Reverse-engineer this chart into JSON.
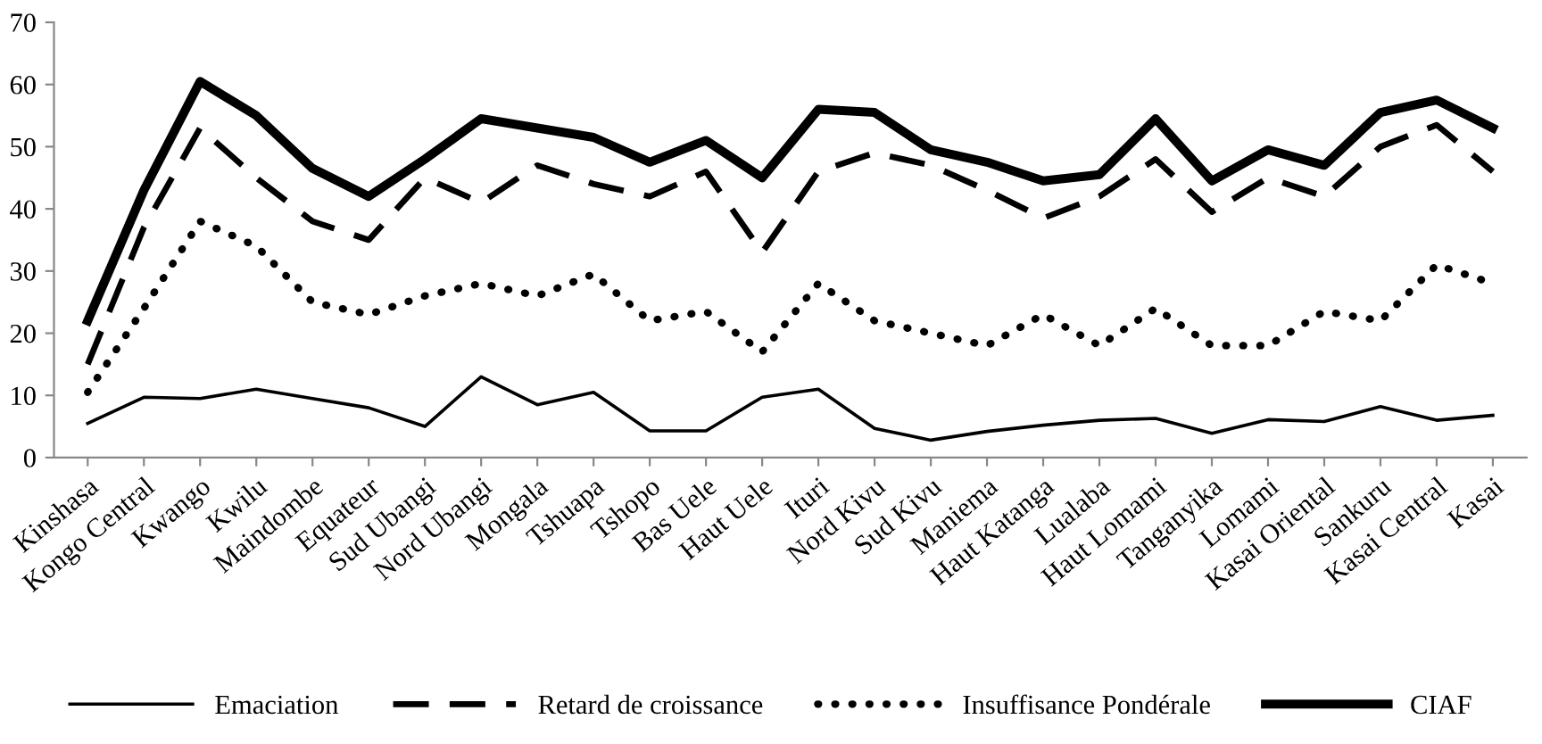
{
  "chart_data": {
    "type": "line",
    "categories": [
      "Kinshasa",
      "Kongo Central",
      "Kwango",
      "Kwilu",
      "Maindombe",
      "Equateur",
      "Sud Ubangi",
      "Nord Ubangi",
      "Mongala",
      "Tshuapa",
      "Tshopo",
      "Bas Uele",
      "Haut Uele",
      "Ituri",
      "Nord Kivu",
      "Sud Kivu",
      "Maniema",
      "Haut Katanga",
      "Lualaba",
      "Haut Lomami",
      "Tanganyika",
      "Lomami",
      "Kasai Oriental",
      "Sankuru",
      "Kasai Central",
      "Kasai"
    ],
    "series": [
      {
        "name": "Emaciation",
        "color": "#000000",
        "line_style": "solid",
        "values": [
          5.5,
          9.7,
          9.5,
          11,
          9.5,
          8,
          5,
          13,
          8.5,
          10.5,
          4.3,
          4.3,
          9.7,
          11,
          4.7,
          2.8,
          4.2,
          5.2,
          6,
          6.3,
          3.9,
          6.1,
          5.8,
          8.2,
          6,
          6.8
        ]
      },
      {
        "name": "Retard de croissance",
        "color": "#000000",
        "line_style": "dashed",
        "values": [
          15,
          37,
          53,
          45,
          38,
          35,
          45,
          41,
          47,
          44,
          42,
          46,
          33,
          46,
          49,
          47,
          43,
          38.5,
          42,
          48,
          39.5,
          45,
          42,
          50,
          53.5,
          46
        ]
      },
      {
        "name": "Insuffisance Pondérale",
        "color": "#000000",
        "line_style": "dotted",
        "values": [
          10.5,
          24,
          38,
          34,
          25,
          23,
          26,
          28,
          26,
          29.5,
          22,
          23.5,
          17,
          28,
          22,
          20,
          18,
          23,
          18,
          24,
          18,
          18,
          23.5,
          22,
          31,
          28
        ]
      },
      {
        "name": "CIAF",
        "color": "#000000",
        "line_style": "solid",
        "values": [
          22,
          43,
          60.5,
          55,
          46.5,
          42,
          48,
          54.5,
          53,
          51.5,
          47.5,
          51,
          45,
          56,
          55.5,
          49.5,
          47.5,
          44.5,
          45.5,
          54.5,
          44.5,
          49.5,
          47,
          55.5,
          57.5,
          53
        ]
      }
    ],
    "ylim": [
      0,
      70
    ],
    "yticks": [
      0,
      10,
      20,
      30,
      40,
      50,
      60,
      70
    ],
    "grid": false,
    "legend": "bottom",
    "marker": "none"
  }
}
